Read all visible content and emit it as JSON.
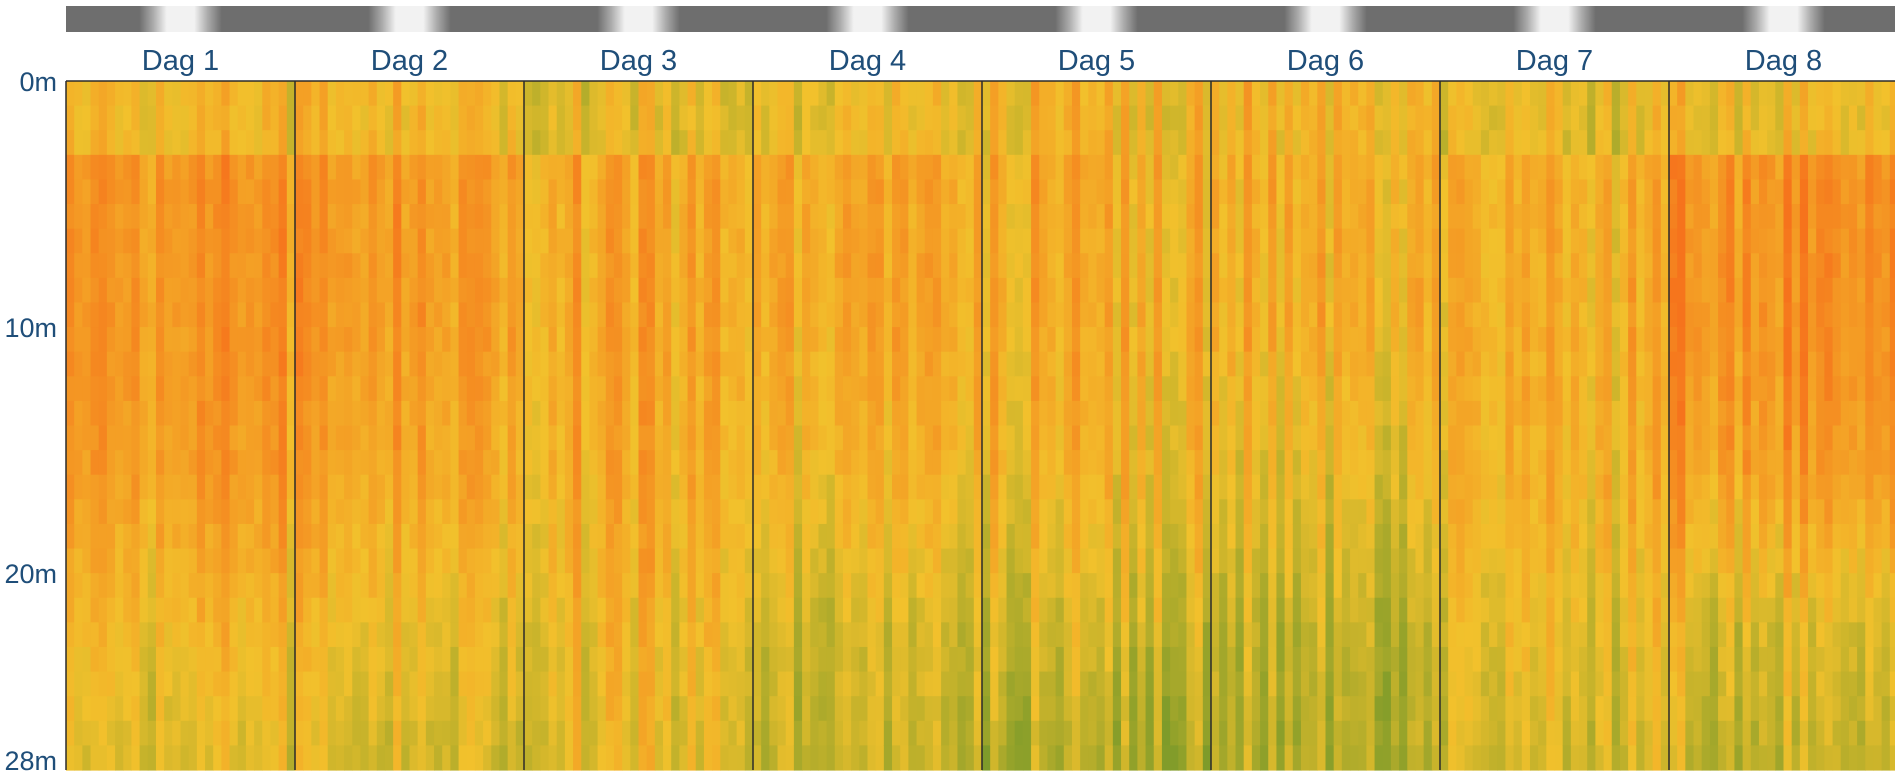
{
  "chart_data": {
    "type": "heatmap",
    "title": "",
    "xlabel": "",
    "ylabel": "",
    "days": [
      "Dag 1",
      "Dag 2",
      "Dag 3",
      "Dag 4",
      "Dag 5",
      "Dag 6",
      "Dag 7",
      "Dag 8"
    ],
    "depth_ticks": [
      "0m",
      "10m",
      "20m",
      "28m"
    ],
    "depth_tick_values": [
      0,
      10,
      20,
      28
    ],
    "ylim": [
      0,
      28
    ],
    "columns_per_day": 28,
    "depth_rows": 28,
    "day_night_bar": true,
    "colors": {
      "low": "#7e9b2a",
      "mid": "#f2c12c",
      "high": "#f6731c",
      "night": "#6e6e6e",
      "day": "#f2f2f2",
      "label": "#1f4e79",
      "separator": "#2b2b2b"
    },
    "relative_intensity_profiles": {
      "Dag 1": {
        "surface": 0.55,
        "upper": 0.78,
        "middle": 0.74,
        "lower": 0.55,
        "bottom": 0.4
      },
      "Dag 2": {
        "surface": 0.55,
        "upper": 0.74,
        "middle": 0.66,
        "lower": 0.5,
        "bottom": 0.35
      },
      "Dag 3": {
        "surface": 0.45,
        "upper": 0.66,
        "middle": 0.62,
        "lower": 0.52,
        "bottom": 0.42
      },
      "Dag 4": {
        "surface": 0.45,
        "upper": 0.62,
        "middle": 0.52,
        "lower": 0.32,
        "bottom": 0.25
      },
      "Dag 5": {
        "surface": 0.55,
        "upper": 0.62,
        "middle": 0.55,
        "lower": 0.35,
        "bottom": 0.18
      },
      "Dag 6": {
        "surface": 0.55,
        "upper": 0.6,
        "middle": 0.45,
        "lower": 0.28,
        "bottom": 0.2
      },
      "Dag 7": {
        "surface": 0.45,
        "upper": 0.6,
        "middle": 0.58,
        "lower": 0.45,
        "bottom": 0.35
      },
      "Dag 8": {
        "surface": 0.52,
        "upper": 0.82,
        "middle": 0.74,
        "lower": 0.42,
        "bottom": 0.3
      }
    }
  }
}
